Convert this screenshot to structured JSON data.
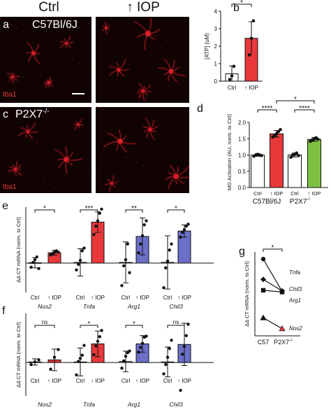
{
  "figure": {
    "columns": [
      "Ctrl",
      "↑ IOP"
    ],
    "micrographs": [
      {
        "panel": "a",
        "genotype": "C57Bl/6J",
        "stain": "Iba1"
      },
      {
        "panel": "c",
        "genotype": "P2X7",
        "genotype_sup": "-/-",
        "stain": "Iba1"
      }
    ],
    "colors": {
      "ctrl": "#ffffff",
      "iop_red": "#e8383a",
      "p2x7_green": "#7ec142",
      "purple": "#6c6fc8",
      "micrograph_bg": "#120303",
      "cell": "#e0202a"
    }
  },
  "chart_data": [
    {
      "panel": "b",
      "type": "bar",
      "ylabel": "[ATP] (uM)",
      "ylim": [
        0,
        4
      ],
      "yticks": [
        0,
        1,
        2,
        3,
        4
      ],
      "categories": [
        "Ctrl",
        "↑ IOP"
      ],
      "values": [
        0.42,
        2.45
      ],
      "sd": [
        0.45,
        0.95
      ],
      "points": [
        [
          0.1,
          0.3,
          0.85
        ],
        [
          1.5,
          2.45,
          3.45
        ]
      ],
      "colors": [
        "#ffffff",
        "#e8383a"
      ],
      "significance": [
        {
          "from": 0,
          "to": 1,
          "label": "*"
        }
      ]
    },
    {
      "panel": "d",
      "type": "bar",
      "ylabel": "MG Activation (AU, norm. to Ctrl)",
      "ylim": [
        0,
        2
      ],
      "yticks": [
        0,
        0.5,
        1,
        1.5,
        2
      ],
      "yticklabels": [
        "0.0",
        "0.5",
        "1.0",
        "1.5",
        "2.0"
      ],
      "categories": [
        "Ctrl",
        "↑ IOP",
        "Ctrl",
        "↑ IOP"
      ],
      "groups": [
        {
          "label": "C57Bl/6J"
        },
        {
          "label": "P2X7",
          "sup": "-/-"
        }
      ],
      "values": [
        1.0,
        1.65,
        1.0,
        1.48
      ],
      "sd": [
        0.04,
        0.1,
        0.06,
        0.06
      ],
      "points": [
        [
          0.96,
          1.0,
          1.02,
          1.0,
          0.98
        ],
        [
          1.55,
          1.6,
          1.65,
          1.72,
          1.78
        ],
        [
          0.93,
          1.0,
          1.02,
          1.06,
          0.98
        ],
        [
          1.42,
          1.46,
          1.5,
          1.53,
          1.48
        ]
      ],
      "colors": [
        "#ffffff",
        "#e8383a",
        "#ffffff",
        "#7ec142"
      ],
      "significance": [
        {
          "from": 0,
          "to": 1,
          "label": "****"
        },
        {
          "from": 2,
          "to": 3,
          "label": "****"
        },
        {
          "from": 1,
          "to": 3,
          "label": "*"
        }
      ]
    },
    {
      "panel": "e",
      "type": "bar",
      "ylabel": "ΔΔ CT mRNA (norm. to Ctrl)",
      "ylim": [
        -4.3,
        8.2
      ],
      "genes": [
        "Nos2",
        "Tnfa",
        "Arg1",
        "Chil3"
      ],
      "categories": [
        "Ctrl",
        "↑ IOP"
      ],
      "values": [
        [
          0.05,
          1.5
        ],
        [
          0.1,
          6.0
        ],
        [
          0.1,
          3.9
        ],
        [
          0.1,
          4.7
        ]
      ],
      "sd": [
        [
          0.75,
          0.35
        ],
        [
          2.0,
          1.5
        ],
        [
          3.0,
          2.7
        ],
        [
          3.9,
          0.9
        ]
      ],
      "points": [
        [
          [
            -0.6,
            0.1,
            0.5,
            0.9,
            -0.8
          ],
          [
            1.2,
            1.4,
            1.6,
            1.8,
            1.6
          ]
        ],
        [
          [
            -1.0,
            -0.2,
            0.4,
            1.8,
            2.2
          ],
          [
            4.2,
            5.4,
            6.2,
            7.3,
            7.9
          ]
        ],
        [
          [
            -3.3,
            -0.4,
            0.5,
            2.8,
            -1.4
          ],
          [
            1.5,
            2.8,
            4.0,
            5.6,
            6.2
          ]
        ],
        [
          [
            -3.6,
            -0.7,
            0.3,
            1.9,
            2.8
          ],
          [
            3.8,
            4.5,
            4.9,
            5.4,
            5.7
          ]
        ]
      ],
      "colors": [
        "#ffffff",
        "#e8383a",
        "#6c6fc8"
      ],
      "significance": [
        "*",
        "***",
        "**",
        "*"
      ]
    },
    {
      "panel": "f",
      "type": "bar",
      "ylabel": "ΔΔ CT mRNA (norm. to Ctrl)",
      "ylim": [
        -6.5,
        9.5
      ],
      "genes": [
        "Nos2",
        "Tnfa",
        "Arg1",
        "Chil3"
      ],
      "categories": [
        "Ctrl",
        "↑ IOP"
      ],
      "values": [
        [
          0.1,
          0.5
        ],
        [
          0.1,
          3.6
        ],
        [
          0.2,
          3.6
        ],
        [
          0.1,
          3.5
        ]
      ],
      "sd": [
        [
          0.6,
          2.1
        ],
        [
          2.7,
          2.5
        ],
        [
          2.0,
          1.6
        ],
        [
          2.9,
          4.1
        ]
      ],
      "points": [
        [
          [
            -0.4,
            0.1,
            0.5
          ],
          [
            -1.3,
            1.0,
            2.5
          ]
        ],
        [
          [
            -2.4,
            0.2,
            0.8,
            1.4,
            3.3
          ],
          [
            1.5,
            3.2,
            4.1,
            5.0,
            6.2
          ]
        ],
        [
          [
            -1.1,
            0.3,
            1.2,
            1.9,
            2.2
          ],
          [
            2.0,
            2.9,
            3.7,
            4.9,
            5.1
          ]
        ],
        [
          [
            -2.2,
            -0.4,
            1.0,
            2.7,
            4.3
          ],
          [
            -5.4,
            1.6,
            3.1,
            5.2,
            7.4
          ]
        ]
      ],
      "colors": [
        "#ffffff",
        "#e8383a",
        "#6c6fc8"
      ],
      "significance": [
        "ns",
        "*",
        "*",
        "ns"
      ]
    },
    {
      "panel": "g",
      "type": "line",
      "ylabel": "ΔΔ CT mRNA (norm. to Ctrl)",
      "x": [
        "C57",
        "P2X7"
      ],
      "x_sup": [
        "",
        "-/-"
      ],
      "series": [
        {
          "name": "Tnfa",
          "marker": "circle",
          "values": [
            6.4,
            3.7
          ]
        },
        {
          "name": "Chil3",
          "marker": "diamond",
          "values": [
            4.7,
            3.75
          ]
        },
        {
          "name": "Arg1",
          "marker": "square",
          "values": [
            3.8,
            3.65
          ]
        },
        {
          "name": "Nos2",
          "marker": "triangle",
          "values": [
            1.5,
            0.6
          ]
        }
      ],
      "significance": "*"
    }
  ]
}
